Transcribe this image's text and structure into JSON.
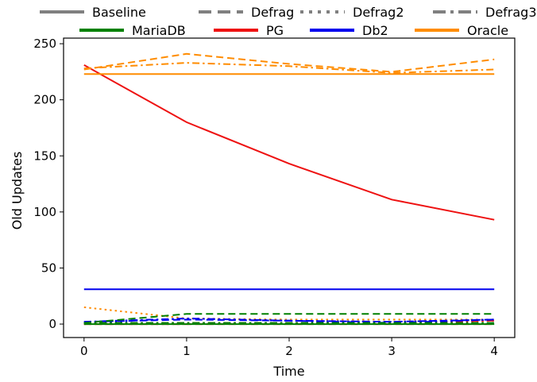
{
  "chart_data": {
    "type": "line",
    "xlabel": "Time",
    "ylabel": "Old Updates",
    "xlim": [
      -0.2,
      4.2
    ],
    "ylim": [
      -12,
      255
    ],
    "xticks": [
      0,
      1,
      2,
      3,
      4
    ],
    "yticks": [
      0,
      50,
      100,
      150,
      200,
      250
    ],
    "grid": false,
    "legend_position": "top",
    "legend": {
      "styles": [
        {
          "name": "Baseline",
          "dash": "solid"
        },
        {
          "name": "Defrag",
          "dash": "dashed"
        },
        {
          "name": "Defrag2",
          "dash": "dotted"
        },
        {
          "name": "Defrag3",
          "dash": "dashdot"
        }
      ],
      "systems": [
        {
          "name": "MariaDB",
          "color": "#008000"
        },
        {
          "name": "PG",
          "color": "#ee1111"
        },
        {
          "name": "Db2",
          "color": "#0000ee"
        },
        {
          "name": "Oracle",
          "color": "#ff8c00"
        }
      ]
    },
    "x": [
      0,
      1,
      2,
      3,
      4
    ],
    "series": [
      {
        "system": "PG",
        "style": "solid",
        "color": "#ee1111",
        "values": [
          231,
          180,
          143,
          111,
          93
        ]
      },
      {
        "system": "PG",
        "style": "dashed",
        "color": "#ee1111",
        "values": [
          0,
          0,
          0,
          0,
          0
        ]
      },
      {
        "system": "PG",
        "style": "dotted",
        "color": "#ee1111",
        "values": [
          0,
          0,
          1,
          1,
          3
        ]
      },
      {
        "system": "PG",
        "style": "dashdot",
        "color": "#ee1111",
        "values": [
          1,
          1,
          1,
          1,
          3
        ]
      },
      {
        "system": "Oracle",
        "style": "solid",
        "color": "#ff8c00",
        "values": [
          223,
          223,
          223,
          223,
          223
        ]
      },
      {
        "system": "Oracle",
        "style": "dashed",
        "color": "#ff8c00",
        "values": [
          227,
          241,
          232,
          225,
          236
        ]
      },
      {
        "system": "Oracle",
        "style": "dotted",
        "color": "#ff8c00",
        "values": [
          15,
          5,
          4,
          4,
          4
        ]
      },
      {
        "system": "Oracle",
        "style": "dashdot",
        "color": "#ff8c00",
        "values": [
          228,
          233,
          230,
          224,
          227
        ]
      },
      {
        "system": "Db2",
        "style": "solid",
        "color": "#0000ee",
        "values": [
          31,
          31,
          31,
          31,
          31
        ]
      },
      {
        "system": "Db2",
        "style": "dashed",
        "color": "#0000ee",
        "values": [
          2,
          4,
          3,
          2,
          4
        ]
      },
      {
        "system": "Db2",
        "style": "dotted",
        "color": "#0000ee",
        "values": [
          1,
          5,
          3,
          2,
          4
        ]
      },
      {
        "system": "Db2",
        "style": "dashdot",
        "color": "#0000ee",
        "values": [
          2,
          5,
          3,
          1,
          4
        ]
      },
      {
        "system": "MariaDB",
        "style": "solid",
        "color": "#008000",
        "values": [
          0,
          0,
          0,
          0,
          0
        ]
      },
      {
        "system": "MariaDB",
        "style": "dashed",
        "color": "#008000",
        "values": [
          1,
          9,
          9,
          9,
          9
        ]
      },
      {
        "system": "MariaDB",
        "style": "dotted",
        "color": "#008000",
        "values": [
          1,
          1,
          1,
          1,
          1
        ]
      },
      {
        "system": "MariaDB",
        "style": "dashdot",
        "color": "#008000",
        "values": [
          1,
          1,
          1,
          1,
          1
        ]
      }
    ]
  }
}
